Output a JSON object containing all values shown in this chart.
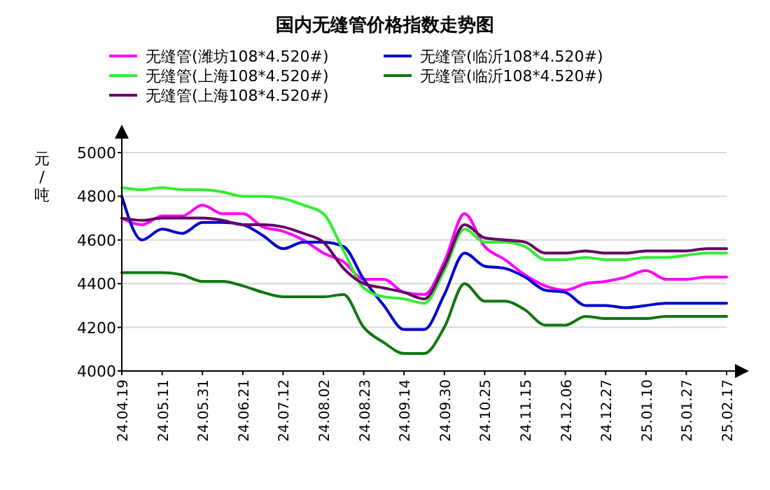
{
  "chart_data": {
    "type": "line",
    "title": "国内无缝管价格指数走势图",
    "ylabel": "元/吨",
    "categories": [
      "24.04.19",
      null,
      "24.05.11",
      null,
      "24.05.31",
      null,
      "24.06.21",
      null,
      "24.07.12",
      null,
      "24.08.02",
      null,
      "24.08.23",
      null,
      "24.09.14",
      null,
      "24.09.30",
      null,
      "24.10.25",
      null,
      "24.11.15",
      null,
      "24.12.06",
      null,
      "24.12.27",
      null,
      "25.01.10",
      null,
      "25.01.27",
      null,
      "25.02.17"
    ],
    "series": [
      {
        "name": "无缝管(潍坊108*4.520#)",
        "color": "#ff00ff",
        "values": [
          4700,
          4670,
          4710,
          4710,
          4760,
          4720,
          4720,
          4660,
          4640,
          4600,
          4540,
          4500,
          4420,
          4420,
          4360,
          4350,
          4500,
          4720,
          4570,
          4510,
          4440,
          4390,
          4370,
          4400,
          4410,
          4430,
          4460,
          4420,
          4420,
          4430,
          4430
        ]
      },
      {
        "name": "无缝管(临沂108*4.520#)",
        "color": "#0000cc",
        "values": [
          4800,
          4600,
          4650,
          4630,
          4680,
          4680,
          4670,
          4620,
          4560,
          4590,
          4590,
          4570,
          4420,
          4300,
          4190,
          4190,
          4350,
          4540,
          4480,
          4470,
          4430,
          4370,
          4360,
          4300,
          4300,
          4290,
          4300,
          4310,
          4310,
          4310,
          4310
        ]
      },
      {
        "name": "无缝管(上海108*4.520#)",
        "color": "#33ee33",
        "values": [
          4840,
          4830,
          4840,
          4830,
          4830,
          4820,
          4800,
          4800,
          4790,
          4760,
          4720,
          4550,
          4380,
          4340,
          4330,
          4310,
          4460,
          4650,
          4590,
          4590,
          4570,
          4510,
          4510,
          4520,
          4510,
          4510,
          4520,
          4520,
          4530,
          4540,
          4540
        ]
      },
      {
        "name": "无缝管(临沂108*4.520#)",
        "color": "#117711",
        "values": [
          4450,
          4450,
          4450,
          4440,
          4410,
          4410,
          4390,
          4360,
          4340,
          4340,
          4340,
          4350,
          4200,
          4130,
          4080,
          4080,
          4200,
          4400,
          4320,
          4320,
          4280,
          4210,
          4210,
          4250,
          4240,
          4240,
          4240,
          4250,
          4250,
          4250,
          4250
        ]
      },
      {
        "name": "无缝管(上海108*4.520#)",
        "color": "#660066",
        "values": [
          4700,
          4690,
          4700,
          4700,
          4700,
          4690,
          4670,
          4670,
          4660,
          4630,
          4590,
          4470,
          4400,
          4380,
          4360,
          4330,
          4480,
          4670,
          4610,
          4600,
          4590,
          4540,
          4540,
          4550,
          4540,
          4540,
          4550,
          4550,
          4550,
          4560,
          4560
        ]
      }
    ],
    "ylim": [
      4000,
      5000
    ],
    "yticks": [
      4000,
      4200,
      4400,
      4600,
      4800,
      5000
    ],
    "grid": "y",
    "legend": "top"
  }
}
